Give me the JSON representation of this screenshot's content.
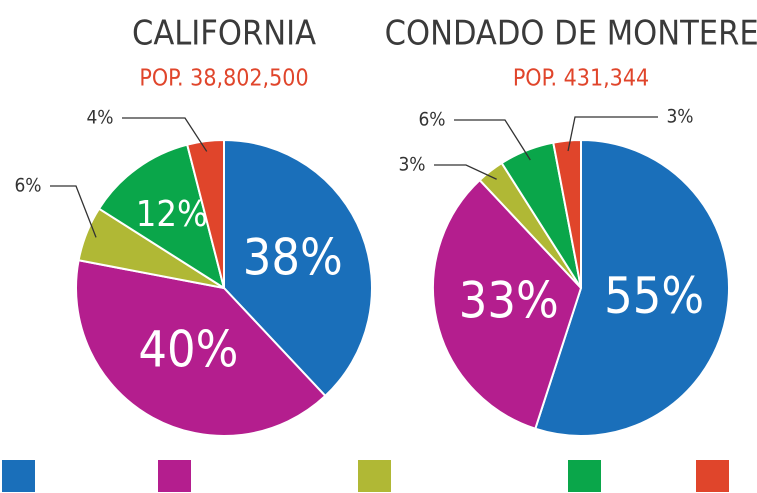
{
  "chart_data": [
    {
      "type": "pie",
      "title": "CALIFORNIA",
      "subtitle": "POP. 38,802,500",
      "categories": [
        null,
        null,
        null,
        null,
        null
      ],
      "values": [
        38,
        40,
        6,
        12,
        4
      ],
      "value_labels": [
        "38%",
        "40%",
        "6%",
        "12%",
        "4%"
      ],
      "colors": [
        "#1a6fba",
        "#b41e8e",
        "#b0b835",
        "#0aa64a",
        "#e0452b"
      ]
    },
    {
      "type": "pie",
      "title": "CONDADO DE MONTEREY",
      "subtitle": "POP. 431,344",
      "categories": [
        null,
        null,
        null,
        null,
        null
      ],
      "values": [
        55,
        33,
        3,
        6,
        3
      ],
      "value_labels": [
        "55%",
        "33%",
        "3%",
        "6%",
        "3%"
      ],
      "colors": [
        "#1a6fba",
        "#b41e8e",
        "#b0b835",
        "#0aa64a",
        "#e0452b"
      ]
    }
  ]
}
